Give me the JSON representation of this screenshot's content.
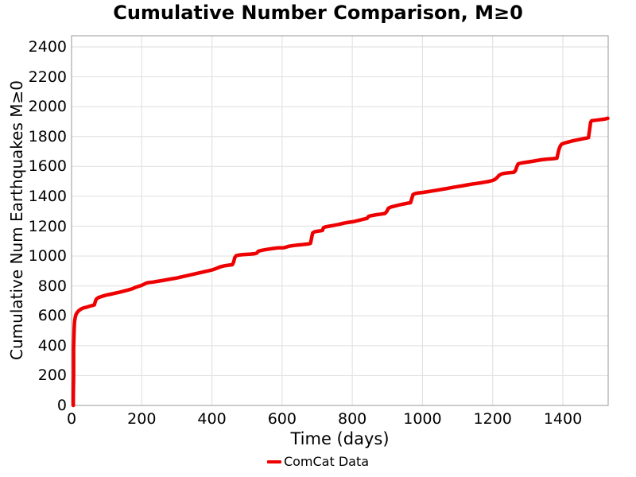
{
  "figure": {
    "title": "Cumulative Number Comparison, M≥0",
    "background": "#ffffff"
  },
  "axes": {
    "x": {
      "label": "Time (days)",
      "ticks": [
        0,
        200,
        400,
        600,
        800,
        1000,
        1200,
        1400
      ],
      "range": [
        0,
        1529
      ]
    },
    "y": {
      "label": "Cumulative Num Earthquakes M≥0",
      "ticks": [
        0,
        200,
        400,
        600,
        800,
        1000,
        1200,
        1400,
        1600,
        1800,
        2000,
        2200,
        2400
      ],
      "range": [
        0,
        2476
      ]
    }
  },
  "legend": {
    "items": [
      {
        "label": "ComCat Data",
        "color": "#ee0000"
      }
    ]
  },
  "colors": {
    "line": "#ee0000",
    "grid": "#e3e3e3",
    "frame": "#a9a9a9",
    "text": "#000000"
  },
  "chart_data": {
    "type": "line",
    "title": "Cumulative Number Comparison, M≥0",
    "xlabel": "Time (days)",
    "ylabel": "Cumulative Num Earthquakes M≥0",
    "xlim": [
      0,
      1529
    ],
    "ylim": [
      0,
      2476
    ],
    "grid": true,
    "legend_position": "bottom-center",
    "series": [
      {
        "name": "ComCat Data",
        "color": "#ee0000",
        "points": [
          [
            5,
            0
          ],
          [
            5,
            60
          ],
          [
            6,
            200
          ],
          [
            6,
            380
          ],
          [
            7,
            480
          ],
          [
            8,
            540
          ],
          [
            9,
            570
          ],
          [
            11,
            595
          ],
          [
            13,
            610
          ],
          [
            16,
            622
          ],
          [
            20,
            633
          ],
          [
            25,
            642
          ],
          [
            30,
            649
          ],
          [
            36,
            654
          ],
          [
            43,
            658
          ],
          [
            50,
            663
          ],
          [
            57,
            668
          ],
          [
            62,
            671
          ],
          [
            65,
            673
          ],
          [
            67,
            690
          ],
          [
            69,
            705
          ],
          [
            72,
            715
          ],
          [
            76,
            721
          ],
          [
            82,
            727
          ],
          [
            90,
            733
          ],
          [
            100,
            739
          ],
          [
            112,
            745
          ],
          [
            125,
            752
          ],
          [
            138,
            759
          ],
          [
            150,
            766
          ],
          [
            162,
            773
          ],
          [
            172,
            780
          ],
          [
            182,
            790
          ],
          [
            192,
            798
          ],
          [
            200,
            804
          ],
          [
            207,
            812
          ],
          [
            213,
            819
          ],
          [
            222,
            823
          ],
          [
            232,
            826
          ],
          [
            243,
            830
          ],
          [
            255,
            835
          ],
          [
            268,
            840
          ],
          [
            282,
            846
          ],
          [
            297,
            852
          ],
          [
            312,
            860
          ],
          [
            327,
            868
          ],
          [
            342,
            876
          ],
          [
            357,
            884
          ],
          [
            372,
            892
          ],
          [
            387,
            900
          ],
          [
            400,
            907
          ],
          [
            412,
            917
          ],
          [
            424,
            928
          ],
          [
            436,
            935
          ],
          [
            448,
            939
          ],
          [
            458,
            942
          ],
          [
            462,
            960
          ],
          [
            465,
            990
          ],
          [
            469,
            1002
          ],
          [
            475,
            1006
          ],
          [
            485,
            1009
          ],
          [
            497,
            1011
          ],
          [
            510,
            1013
          ],
          [
            522,
            1016
          ],
          [
            528,
            1020
          ],
          [
            532,
            1032
          ],
          [
            540,
            1037
          ],
          [
            550,
            1042
          ],
          [
            562,
            1047
          ],
          [
            575,
            1051
          ],
          [
            590,
            1055
          ],
          [
            605,
            1056
          ],
          [
            620,
            1066
          ],
          [
            635,
            1071
          ],
          [
            650,
            1075
          ],
          [
            663,
            1078
          ],
          [
            675,
            1081
          ],
          [
            681,
            1085
          ],
          [
            684,
            1120
          ],
          [
            687,
            1155
          ],
          [
            692,
            1162
          ],
          [
            700,
            1166
          ],
          [
            710,
            1169
          ],
          [
            715,
            1172
          ],
          [
            718,
            1190
          ],
          [
            723,
            1195
          ],
          [
            735,
            1200
          ],
          [
            748,
            1206
          ],
          [
            762,
            1212
          ],
          [
            776,
            1220
          ],
          [
            790,
            1226
          ],
          [
            802,
            1230
          ],
          [
            816,
            1238
          ],
          [
            830,
            1246
          ],
          [
            842,
            1252
          ],
          [
            845,
            1262
          ],
          [
            849,
            1268
          ],
          [
            858,
            1272
          ],
          [
            870,
            1277
          ],
          [
            882,
            1281
          ],
          [
            893,
            1285
          ],
          [
            898,
            1298
          ],
          [
            903,
            1320
          ],
          [
            910,
            1328
          ],
          [
            920,
            1334
          ],
          [
            932,
            1341
          ],
          [
            945,
            1348
          ],
          [
            958,
            1354
          ],
          [
            966,
            1357
          ],
          [
            969,
            1380
          ],
          [
            973,
            1412
          ],
          [
            980,
            1419
          ],
          [
            990,
            1423
          ],
          [
            1002,
            1426
          ],
          [
            1015,
            1431
          ],
          [
            1028,
            1436
          ],
          [
            1042,
            1441
          ],
          [
            1056,
            1447
          ],
          [
            1070,
            1452
          ],
          [
            1085,
            1459
          ],
          [
            1100,
            1465
          ],
          [
            1115,
            1471
          ],
          [
            1130,
            1477
          ],
          [
            1145,
            1483
          ],
          [
            1160,
            1488
          ],
          [
            1175,
            1494
          ],
          [
            1190,
            1500
          ],
          [
            1200,
            1506
          ],
          [
            1206,
            1513
          ],
          [
            1212,
            1524
          ],
          [
            1218,
            1540
          ],
          [
            1226,
            1550
          ],
          [
            1236,
            1555
          ],
          [
            1248,
            1558
          ],
          [
            1260,
            1560
          ],
          [
            1265,
            1572
          ],
          [
            1269,
            1600
          ],
          [
            1273,
            1618
          ],
          [
            1282,
            1623
          ],
          [
            1295,
            1628
          ],
          [
            1310,
            1633
          ],
          [
            1325,
            1639
          ],
          [
            1340,
            1645
          ],
          [
            1356,
            1649
          ],
          [
            1372,
            1652
          ],
          [
            1383,
            1655
          ],
          [
            1386,
            1685
          ],
          [
            1389,
            1715
          ],
          [
            1393,
            1738
          ],
          [
            1397,
            1750
          ],
          [
            1404,
            1756
          ],
          [
            1415,
            1763
          ],
          [
            1428,
            1771
          ],
          [
            1441,
            1778
          ],
          [
            1454,
            1784
          ],
          [
            1466,
            1789
          ],
          [
            1473,
            1793
          ],
          [
            1476,
            1840
          ],
          [
            1479,
            1895
          ],
          [
            1482,
            1906
          ],
          [
            1492,
            1909
          ],
          [
            1503,
            1912
          ],
          [
            1513,
            1915
          ],
          [
            1521,
            1918
          ],
          [
            1528,
            1922
          ]
        ]
      }
    ]
  }
}
